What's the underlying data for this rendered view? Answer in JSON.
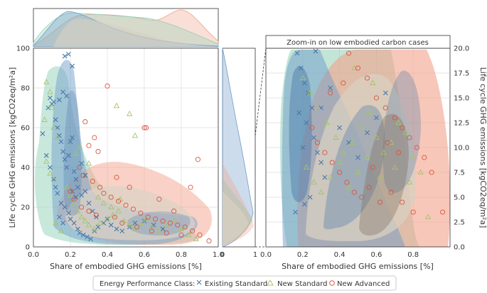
{
  "colors": {
    "existing": "#4a78a8",
    "new_standard": "#a8c26a",
    "new_advanced": "#d9553f",
    "fill_existing": "#6f9cc8",
    "fill_new_standard": "#8fd0b8",
    "fill_new_advanced": "#f2a28a",
    "fill_neutral": "#d8d0c2",
    "panel_bg": "#ebebeb"
  },
  "chart_data": [
    {
      "id": "main-scatter",
      "type": "scatter",
      "xlabel": "Share of embodied GHG emissions [%]",
      "ylabel": "Life cycle GHG emissions [kgCO2eq/m²a]",
      "xlim": [
        0.0,
        1.0
      ],
      "ylim": [
        0,
        100
      ],
      "xticks": [
        "0.0",
        "0.2",
        "0.4",
        "0.6",
        "0.8",
        "1.0"
      ],
      "yticks": [
        "0",
        "20",
        "40",
        "60",
        "80",
        "100"
      ],
      "grid": true,
      "series": [
        {
          "name": "Existing Standard",
          "marker": "x",
          "points": [
            [
              0.05,
              57
            ],
            [
              0.08,
              70
            ],
            [
              0.09,
              75
            ],
            [
              0.1,
              72
            ],
            [
              0.11,
              73
            ],
            [
              0.12,
              64
            ],
            [
              0.13,
              60
            ],
            [
              0.14,
              56
            ],
            [
              0.15,
              53
            ],
            [
              0.16,
              48
            ],
            [
              0.17,
              44
            ],
            [
              0.18,
              40
            ],
            [
              0.19,
              46
            ],
            [
              0.2,
              53
            ],
            [
              0.21,
              55
            ],
            [
              0.22,
              38
            ],
            [
              0.23,
              34
            ],
            [
              0.19,
              97
            ],
            [
              0.17,
              96
            ],
            [
              0.21,
              91
            ],
            [
              0.16,
              78
            ],
            [
              0.18,
              76
            ],
            [
              0.14,
              74
            ],
            [
              0.12,
              30
            ],
            [
              0.13,
              27
            ],
            [
              0.15,
              22
            ],
            [
              0.17,
              20
            ],
            [
              0.19,
              17
            ],
            [
              0.2,
              14
            ],
            [
              0.22,
              12
            ],
            [
              0.24,
              9
            ],
            [
              0.25,
              7
            ],
            [
              0.27,
              6
            ],
            [
              0.29,
              5
            ],
            [
              0.31,
              4
            ],
            [
              0.33,
              8
            ],
            [
              0.35,
              10
            ],
            [
              0.38,
              12
            ],
            [
              0.4,
              14
            ],
            [
              0.42,
              11
            ],
            [
              0.45,
              9
            ],
            [
              0.48,
              8
            ],
            [
              0.52,
              10
            ],
            [
              0.55,
              12
            ],
            [
              0.6,
              13
            ],
            [
              0.65,
              11
            ],
            [
              0.7,
              9
            ],
            [
              0.24,
              30
            ],
            [
              0.26,
              26
            ],
            [
              0.28,
              28
            ],
            [
              0.3,
              22
            ],
            [
              0.32,
              18
            ],
            [
              0.34,
              15
            ],
            [
              0.11,
              34
            ],
            [
              0.09,
              40
            ],
            [
              0.07,
              46
            ],
            [
              0.26,
              42
            ],
            [
              0.28,
              36
            ],
            [
              0.16,
              12
            ],
            [
              0.14,
              15
            ],
            [
              0.23,
              25
            ],
            [
              0.21,
              28
            ]
          ]
        },
        {
          "name": "New Standard",
          "marker": "triangle",
          "points": [
            [
              0.07,
              83
            ],
            [
              0.09,
              78
            ],
            [
              0.1,
              70
            ],
            [
              0.06,
              64
            ],
            [
              0.11,
              60
            ],
            [
              0.13,
              55
            ],
            [
              0.07,
              43
            ],
            [
              0.09,
              37
            ],
            [
              0.11,
              34
            ],
            [
              0.25,
              50
            ],
            [
              0.23,
              47
            ],
            [
              0.3,
              42
            ],
            [
              0.45,
              71
            ],
            [
              0.52,
              67
            ],
            [
              0.55,
              56
            ],
            [
              0.18,
              30
            ],
            [
              0.2,
              26
            ],
            [
              0.22,
              22
            ],
            [
              0.24,
              18
            ],
            [
              0.26,
              15
            ],
            [
              0.28,
              13
            ],
            [
              0.3,
              11
            ],
            [
              0.33,
              9
            ],
            [
              0.36,
              12
            ],
            [
              0.4,
              14
            ],
            [
              0.43,
              16
            ],
            [
              0.46,
              18
            ],
            [
              0.49,
              13
            ],
            [
              0.52,
              11
            ],
            [
              0.55,
              9
            ],
            [
              0.58,
              12
            ],
            [
              0.61,
              14
            ],
            [
              0.64,
              10
            ],
            [
              0.68,
              8
            ],
            [
              0.72,
              11
            ],
            [
              0.76,
              13
            ],
            [
              0.8,
              9
            ],
            [
              0.84,
              6
            ],
            [
              0.88,
              4
            ],
            [
              0.15,
              8
            ],
            [
              0.12,
              12
            ],
            [
              0.35,
              25
            ],
            [
              0.38,
              22
            ],
            [
              0.42,
              20
            ],
            [
              0.47,
              24
            ]
          ]
        },
        {
          "name": "New Advanced",
          "marker": "circle",
          "points": [
            [
              0.4,
              81
            ],
            [
              0.28,
              63
            ],
            [
              0.33,
              55
            ],
            [
              0.3,
              51
            ],
            [
              0.35,
              48
            ],
            [
              0.6,
              60
            ],
            [
              0.61,
              60
            ],
            [
              0.89,
              44
            ],
            [
              0.85,
              30
            ],
            [
              0.25,
              40
            ],
            [
              0.27,
              36
            ],
            [
              0.32,
              33
            ],
            [
              0.36,
              30
            ],
            [
              0.38,
              27
            ],
            [
              0.42,
              25
            ],
            [
              0.46,
              23
            ],
            [
              0.5,
              21
            ],
            [
              0.54,
              19
            ],
            [
              0.58,
              17
            ],
            [
              0.62,
              15
            ],
            [
              0.66,
              14
            ],
            [
              0.7,
              13
            ],
            [
              0.74,
              12
            ],
            [
              0.78,
              11
            ],
            [
              0.82,
              10
            ],
            [
              0.86,
              8
            ],
            [
              0.9,
              6
            ],
            [
              0.95,
              3
            ],
            [
              0.2,
              28
            ],
            [
              0.22,
              24
            ],
            [
              0.26,
              20
            ],
            [
              0.3,
              18
            ],
            [
              0.34,
              16
            ],
            [
              0.44,
              15
            ],
            [
              0.48,
              12
            ],
            [
              0.56,
              10
            ],
            [
              0.64,
              8
            ],
            [
              0.72,
              7
            ],
            [
              0.8,
              6
            ],
            [
              0.45,
              35
            ],
            [
              0.52,
              30
            ],
            [
              0.68,
              24
            ],
            [
              0.76,
              18
            ]
          ]
        }
      ]
    },
    {
      "id": "zoom-scatter",
      "type": "scatter",
      "title": "Zoom-in on low embodied carbon cases",
      "xlabel": "Share of embodied GHG emissions [%]",
      "ylabel": "Life cycle GHG emissions [kgCO2eq/m²a]",
      "xlim": [
        0.0,
        1.0
      ],
      "ylim": [
        0.0,
        20.0
      ],
      "xticks": [
        "0.0",
        "0.2",
        "0.4",
        "0.6",
        "0.8"
      ],
      "yticks": [
        "0.0",
        "2.5",
        "5.0",
        "7.5",
        "10.0",
        "12.5",
        "15.0",
        "17.5",
        "20.0"
      ],
      "grid": true,
      "series": [
        {
          "name": "Existing Standard",
          "marker": "x",
          "points": [
            [
              0.17,
              19.5
            ],
            [
              0.19,
              18.0
            ],
            [
              0.21,
              16.5
            ],
            [
              0.23,
              15.5
            ],
            [
              0.25,
              14.0
            ],
            [
              0.18,
              13.5
            ],
            [
              0.22,
              12.5
            ],
            [
              0.26,
              11.0
            ],
            [
              0.28,
              9.5
            ],
            [
              0.3,
              8.5
            ],
            [
              0.32,
              7.0
            ],
            [
              0.16,
              3.5
            ],
            [
              0.21,
              4.3
            ],
            [
              0.24,
              5.0
            ],
            [
              0.3,
              14.0
            ],
            [
              0.35,
              16.0
            ],
            [
              0.4,
              12.0
            ],
            [
              0.45,
              10.5
            ],
            [
              0.5,
              9.0
            ],
            [
              0.55,
              11.5
            ],
            [
              0.6,
              13.0
            ],
            [
              0.65,
              15.5
            ],
            [
              0.2,
              10.0
            ],
            [
              0.27,
              19.7
            ]
          ]
        },
        {
          "name": "New Standard",
          "marker": "triangle",
          "points": [
            [
              0.2,
              17.0
            ],
            [
              0.24,
              15.5
            ],
            [
              0.28,
              14.0
            ],
            [
              0.33,
              12.5
            ],
            [
              0.38,
              11.0
            ],
            [
              0.42,
              9.5
            ],
            [
              0.47,
              10.5
            ],
            [
              0.52,
              12.0
            ],
            [
              0.56,
              13.5
            ],
            [
              0.6,
              11.0
            ],
            [
              0.64,
              9.5
            ],
            [
              0.68,
              10.5
            ],
            [
              0.72,
              12.5
            ],
            [
              0.76,
              11.5
            ],
            [
              0.8,
              9.0
            ],
            [
              0.84,
              7.5
            ],
            [
              0.88,
              3.0
            ],
            [
              0.22,
              8.0
            ],
            [
              0.26,
              6.5
            ],
            [
              0.3,
              5.5
            ],
            [
              0.35,
              7.0
            ],
            [
              0.4,
              8.5
            ],
            [
              0.45,
              6.0
            ],
            [
              0.5,
              7.5
            ],
            [
              0.55,
              9.0
            ],
            [
              0.62,
              7.0
            ],
            [
              0.7,
              8.0
            ],
            [
              0.78,
              6.5
            ],
            [
              0.58,
              16.5
            ],
            [
              0.48,
              18.0
            ]
          ]
        },
        {
          "name": "New Advanced",
          "marker": "circle",
          "points": [
            [
              0.45,
              19.5
            ],
            [
              0.5,
              18.0
            ],
            [
              0.55,
              17.0
            ],
            [
              0.6,
              15.0
            ],
            [
              0.65,
              14.0
            ],
            [
              0.7,
              13.0
            ],
            [
              0.74,
              12.0
            ],
            [
              0.78,
              11.0
            ],
            [
              0.82,
              10.0
            ],
            [
              0.86,
              9.0
            ],
            [
              0.9,
              7.5
            ],
            [
              0.96,
              3.5
            ],
            [
              0.25,
              12.0
            ],
            [
              0.28,
              10.5
            ],
            [
              0.32,
              9.5
            ],
            [
              0.36,
              8.5
            ],
            [
              0.4,
              7.5
            ],
            [
              0.44,
              6.5
            ],
            [
              0.48,
              5.5
            ],
            [
              0.52,
              5.0
            ],
            [
              0.56,
              6.0
            ],
            [
              0.62,
              4.5
            ],
            [
              0.68,
              5.5
            ],
            [
              0.74,
              4.5
            ],
            [
              0.8,
              3.5
            ],
            [
              0.35,
              15.5
            ],
            [
              0.42,
              16.5
            ],
            [
              0.66,
              10.5
            ],
            [
              0.72,
              9.5
            ],
            [
              0.58,
              8.0
            ]
          ]
        }
      ]
    }
  ],
  "legend": {
    "title": "Energy Performance Class:",
    "items": [
      "Existing Standard",
      "New Standard",
      "New Advanced"
    ]
  }
}
